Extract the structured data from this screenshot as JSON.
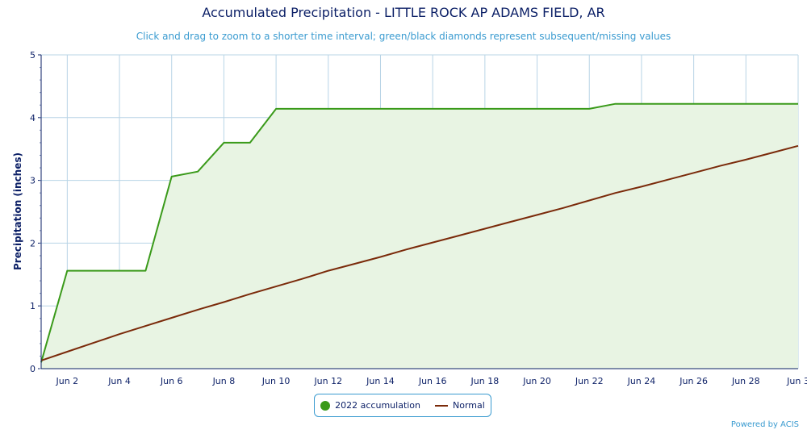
{
  "chart_data": {
    "type": "area",
    "title": "Accumulated Precipitation - LITTLE ROCK AP ADAMS FIELD, AR",
    "subtitle": "Click and drag to zoom to a shorter time interval; green/black diamonds represent subsequent/missing values",
    "ylabel": "Precipitation (inches)",
    "xlabel": "",
    "ylim": [
      0,
      5
    ],
    "xlim": [
      1,
      30
    ],
    "yticks": [
      0,
      1,
      2,
      3,
      4,
      5
    ],
    "xticks": [
      {
        "day": 2,
        "label": "Jun 2"
      },
      {
        "day": 4,
        "label": "Jun 4"
      },
      {
        "day": 6,
        "label": "Jun 6"
      },
      {
        "day": 8,
        "label": "Jun 8"
      },
      {
        "day": 10,
        "label": "Jun 10"
      },
      {
        "day": 12,
        "label": "Jun 12"
      },
      {
        "day": 14,
        "label": "Jun 14"
      },
      {
        "day": 16,
        "label": "Jun 16"
      },
      {
        "day": 18,
        "label": "Jun 18"
      },
      {
        "day": 20,
        "label": "Jun 20"
      },
      {
        "day": 22,
        "label": "Jun 22"
      },
      {
        "day": 24,
        "label": "Jun 24"
      },
      {
        "day": 26,
        "label": "Jun 26"
      },
      {
        "day": 28,
        "label": "Jun 28"
      },
      {
        "day": 30,
        "label": "Jun 3"
      }
    ],
    "grid": true,
    "legend_position": "bottom-center",
    "series": [
      {
        "name": "2022 accumulation",
        "color": "#3a9a1a",
        "fill": "#e8f4e3",
        "x": [
          1,
          2,
          3,
          4,
          5,
          6,
          7,
          8,
          9,
          10,
          11,
          12,
          13,
          14,
          15,
          16,
          17,
          18,
          19,
          20,
          21,
          22,
          23,
          24,
          25,
          26,
          27,
          28,
          29,
          30
        ],
        "values": [
          0.1,
          1.56,
          1.56,
          1.56,
          1.56,
          3.06,
          3.14,
          3.6,
          3.6,
          4.14,
          4.14,
          4.14,
          4.14,
          4.14,
          4.14,
          4.14,
          4.14,
          4.14,
          4.14,
          4.14,
          4.14,
          4.14,
          4.22,
          4.22,
          4.22,
          4.22,
          4.22,
          4.22,
          4.22,
          4.22
        ]
      },
      {
        "name": "Normal",
        "color": "#7a2a0a",
        "x": [
          1,
          2,
          3,
          4,
          5,
          6,
          7,
          8,
          9,
          10,
          11,
          12,
          13,
          14,
          15,
          16,
          17,
          18,
          19,
          20,
          21,
          22,
          23,
          24,
          25,
          26,
          27,
          28,
          29,
          30
        ],
        "values": [
          0.13,
          0.27,
          0.41,
          0.55,
          0.68,
          0.81,
          0.94,
          1.06,
          1.19,
          1.31,
          1.43,
          1.56,
          1.67,
          1.78,
          1.9,
          2.01,
          2.12,
          2.23,
          2.34,
          2.45,
          2.56,
          2.68,
          2.8,
          2.9,
          3.01,
          3.12,
          3.23,
          3.33,
          3.44,
          3.55
        ]
      }
    ]
  },
  "credit": "Powered by ACIS"
}
